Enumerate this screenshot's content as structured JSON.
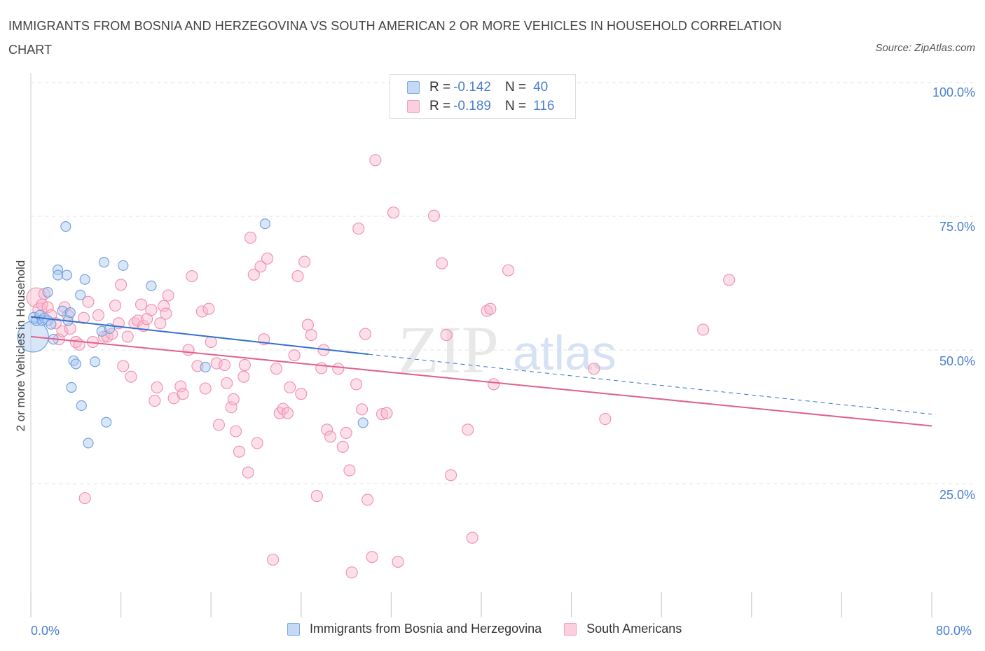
{
  "title": "IMMIGRANTS FROM BOSNIA AND HERZEGOVINA VS SOUTH AMERICAN 2 OR MORE VEHICLES IN HOUSEHOLD CORRELATION CHART",
  "source": "Source: ZipAtlas.com",
  "watermark": {
    "zip": "ZIP",
    "atlas": "atlas"
  },
  "legend": [
    {
      "r_label": "R =",
      "r_value": "-0.142",
      "n_label": "N =",
      "n_value": "40"
    },
    {
      "r_label": "R =",
      "r_value": "-0.189",
      "n_label": "N =",
      "n_value": "116"
    }
  ],
  "chart_data": {
    "type": "scatter",
    "title": "IMMIGRANTS FROM BOSNIA AND HERZEGOVINA VS SOUTH AMERICAN 2 OR MORE VEHICLES IN HOUSEHOLD CORRELATION CHART",
    "xlabel": "",
    "ylabel": "2 or more Vehicles in Household",
    "xlim": [
      0,
      80
    ],
    "ylim": [
      0,
      100
    ],
    "x_tick_labels": [
      "0.0%",
      "80.0%"
    ],
    "y_tick_labels": [
      "100.0%",
      "75.0%",
      "50.0%",
      "25.0%"
    ],
    "y_ticks": [
      100,
      75,
      50,
      25
    ],
    "grid": true,
    "legend_position": "top-center",
    "colors": {
      "bosnia": "#7aaae8",
      "bosnia_line": "#3370cc",
      "south": "#f4a0bc",
      "south_line": "#e0608e",
      "axis_text": "#4a7fcc"
    },
    "series": [
      {
        "name": "Immigrants from Bosnia and Herzegovina",
        "trend": {
          "x0": 0,
          "y0": 56.2,
          "x1": 30,
          "y1": 49.2,
          "dashed_to_x": 80,
          "dashed_to_y": 38.0
        },
        "points": [
          [
            0.2,
            52.5,
            22
          ],
          [
            0.3,
            56,
            8
          ],
          [
            0.5,
            55.5,
            7
          ],
          [
            0.8,
            56.5,
            7
          ],
          [
            1.0,
            55.5,
            7
          ],
          [
            1.2,
            56,
            7
          ],
          [
            1.5,
            55.5,
            7
          ],
          [
            1.5,
            60.8,
            7
          ],
          [
            1.8,
            54.8,
            7
          ],
          [
            2.0,
            52,
            7
          ],
          [
            2.4,
            65,
            7
          ],
          [
            2.4,
            64,
            7
          ],
          [
            2.8,
            57.3,
            7
          ],
          [
            3.1,
            73.1,
            7
          ],
          [
            3.2,
            64,
            7
          ],
          [
            3.3,
            55.5,
            7
          ],
          [
            3.5,
            57,
            7
          ],
          [
            3.6,
            43,
            7
          ],
          [
            3.8,
            48,
            7
          ],
          [
            4.0,
            47.4,
            7
          ],
          [
            4.4,
            60.3,
            7
          ],
          [
            4.5,
            39.6,
            7
          ],
          [
            4.8,
            63.2,
            7
          ],
          [
            5.1,
            32.6,
            7
          ],
          [
            5.7,
            47.8,
            7
          ],
          [
            6.3,
            53.5,
            7
          ],
          [
            6.5,
            66.4,
            7
          ],
          [
            6.7,
            36.5,
            7
          ],
          [
            7.0,
            54,
            7
          ],
          [
            8.2,
            65.8,
            7
          ],
          [
            10.7,
            62,
            7
          ],
          [
            15.5,
            46.8,
            7
          ],
          [
            20.8,
            73.6,
            7
          ],
          [
            29.5,
            36.4,
            7
          ]
        ]
      },
      {
        "name": "South Americans",
        "trend": {
          "x0": 0,
          "y0": 52.5,
          "x1": 80,
          "y1": 35.8
        },
        "points": [
          [
            0.5,
            59.8,
            14
          ],
          [
            0.8,
            57.5,
            10
          ],
          [
            1.0,
            58.5,
            8
          ],
          [
            1.2,
            60.5,
            8
          ],
          [
            1.5,
            58,
            8
          ],
          [
            1.8,
            56.5,
            8
          ],
          [
            2.2,
            55,
            8
          ],
          [
            2.5,
            52,
            8
          ],
          [
            2.8,
            53.5,
            8
          ],
          [
            3.0,
            58,
            8
          ],
          [
            3.3,
            56.5,
            8
          ],
          [
            3.5,
            54,
            8
          ],
          [
            4.0,
            51.5,
            8
          ],
          [
            4.3,
            51,
            8
          ],
          [
            4.7,
            56,
            8
          ],
          [
            4.8,
            22.3,
            8
          ],
          [
            5.1,
            59,
            8
          ],
          [
            5.5,
            51.5,
            8
          ],
          [
            6.0,
            56.5,
            8
          ],
          [
            6.5,
            52.5,
            8
          ],
          [
            6.8,
            52.5,
            8
          ],
          [
            7.2,
            53,
            8
          ],
          [
            7.5,
            58.3,
            8
          ],
          [
            7.8,
            55,
            8
          ],
          [
            8.0,
            62.2,
            8
          ],
          [
            8.2,
            47,
            8
          ],
          [
            8.6,
            52.5,
            8
          ],
          [
            8.9,
            45,
            8
          ],
          [
            9.2,
            55,
            8
          ],
          [
            9.5,
            55.5,
            8
          ],
          [
            9.8,
            58.5,
            8
          ],
          [
            10.0,
            54.5,
            8
          ],
          [
            10.3,
            55.8,
            8
          ],
          [
            10.7,
            57.5,
            8
          ],
          [
            11.0,
            40.5,
            8
          ],
          [
            11.2,
            43,
            8
          ],
          [
            11.5,
            55,
            8
          ],
          [
            11.8,
            58.2,
            8
          ],
          [
            12.0,
            56.8,
            8
          ],
          [
            12.2,
            60.2,
            8
          ],
          [
            12.7,
            41,
            8
          ],
          [
            13.3,
            43.2,
            8
          ],
          [
            13.5,
            41.8,
            8
          ],
          [
            14.0,
            50,
            8
          ],
          [
            14.3,
            63.8,
            8
          ],
          [
            14.8,
            47,
            8
          ],
          [
            15.2,
            57.2,
            8
          ],
          [
            15.5,
            42.8,
            8
          ],
          [
            15.8,
            57.7,
            8
          ],
          [
            16.0,
            51.5,
            8
          ],
          [
            16.5,
            47.5,
            8
          ],
          [
            16.7,
            36,
            8
          ],
          [
            17.2,
            47.2,
            8
          ],
          [
            17.4,
            43.8,
            8
          ],
          [
            17.8,
            39.3,
            8
          ],
          [
            18.0,
            40.8,
            8
          ],
          [
            18.2,
            34.8,
            8
          ],
          [
            18.5,
            31,
            8
          ],
          [
            18.9,
            45,
            8
          ],
          [
            19.0,
            47.2,
            8
          ],
          [
            19.3,
            27.1,
            8
          ],
          [
            19.5,
            71,
            8
          ],
          [
            19.8,
            64.1,
            8
          ],
          [
            20.1,
            32.6,
            8
          ],
          [
            20.4,
            65.6,
            8
          ],
          [
            20.7,
            52,
            8
          ],
          [
            21.0,
            67.1,
            8
          ],
          [
            21.5,
            10.8,
            8
          ],
          [
            21.8,
            46.5,
            8
          ],
          [
            22.1,
            38.2,
            8
          ],
          [
            22.4,
            39,
            8
          ],
          [
            22.8,
            38.2,
            8
          ],
          [
            23.0,
            43,
            8
          ],
          [
            23.4,
            49,
            8
          ],
          [
            23.7,
            63.8,
            8
          ],
          [
            24.0,
            41.8,
            8
          ],
          [
            24.3,
            66.5,
            8
          ],
          [
            24.6,
            54.7,
            8
          ],
          [
            24.9,
            52.8,
            8
          ],
          [
            25.4,
            22.7,
            8
          ],
          [
            25.8,
            46.6,
            8
          ],
          [
            26.0,
            50,
            8
          ],
          [
            26.3,
            35.1,
            8
          ],
          [
            26.6,
            33.8,
            8
          ],
          [
            27.3,
            46.5,
            8
          ],
          [
            27.7,
            31.9,
            8
          ],
          [
            28.0,
            34.5,
            8
          ],
          [
            28.3,
            27.5,
            8
          ],
          [
            28.5,
            8.4,
            8
          ],
          [
            28.9,
            43.6,
            8
          ],
          [
            29.1,
            72.7,
            8
          ],
          [
            29.4,
            38.9,
            8
          ],
          [
            29.7,
            53,
            8
          ],
          [
            29.9,
            22,
            8
          ],
          [
            30.3,
            11.3,
            8
          ],
          [
            30.6,
            85.5,
            8
          ],
          [
            31.2,
            38,
            8
          ],
          [
            31.6,
            38.2,
            8
          ],
          [
            32.2,
            75.7,
            8
          ],
          [
            32.6,
            10.4,
            8
          ],
          [
            35.8,
            75.1,
            8
          ],
          [
            36.5,
            66.2,
            8
          ],
          [
            36.9,
            52.8,
            8
          ],
          [
            37.3,
            26.6,
            8
          ],
          [
            38.8,
            35.1,
            8
          ],
          [
            39.2,
            14.9,
            8
          ],
          [
            40.5,
            57.3,
            8
          ],
          [
            40.8,
            57.7,
            8
          ],
          [
            41.1,
            43.6,
            8
          ],
          [
            42.4,
            64.9,
            8
          ],
          [
            50.0,
            46.5,
            8
          ],
          [
            51.0,
            37.1,
            8
          ],
          [
            59.7,
            53.8,
            8
          ],
          [
            62.0,
            63.1,
            8
          ]
        ]
      }
    ]
  },
  "bottom_legend": [
    {
      "label": "Immigrants from Bosnia and Herzegovina"
    },
    {
      "label": "South Americans"
    }
  ]
}
